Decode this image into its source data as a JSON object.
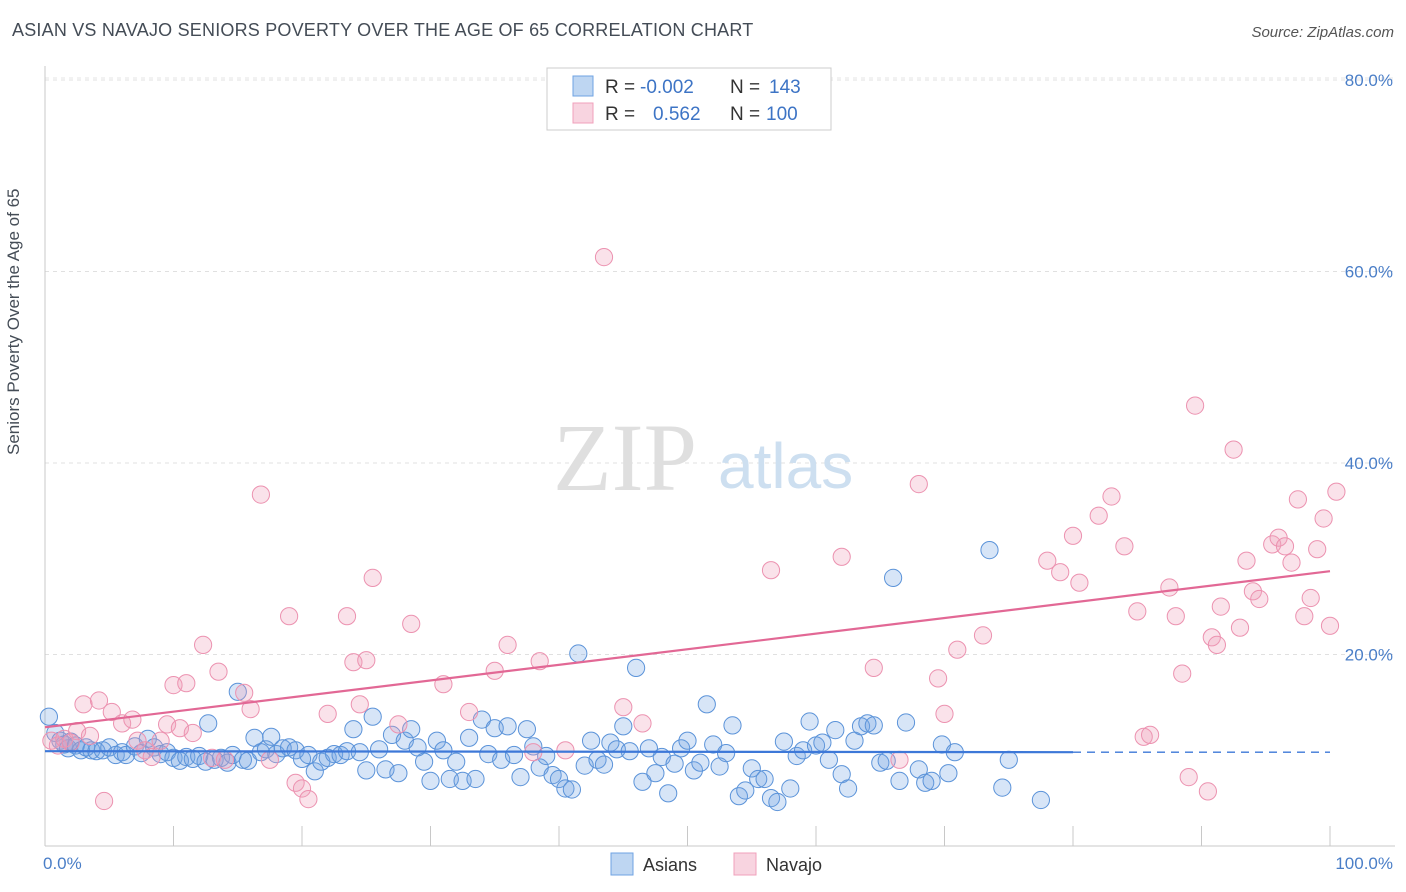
{
  "header": {
    "title": "ASIAN VS NAVAJO SENIORS POVERTY OVER THE AGE OF 65 CORRELATION CHART",
    "source": "Source: ZipAtlas.com"
  },
  "watermark": {
    "part1": "ZIP",
    "part2": "atlas"
  },
  "legend": {
    "rows": [
      {
        "r_label": "R =",
        "r_value": "-0.002",
        "n_label": "N =",
        "n_value": "143",
        "color": "#6fa3e3"
      },
      {
        "r_label": "R =",
        "r_value": "0.562",
        "n_label": "N =",
        "n_value": "100",
        "color": "#f0a0bb"
      }
    ]
  },
  "bottom_legend": [
    {
      "label": "Asians",
      "color": "#6fa3e3"
    },
    {
      "label": "Navajo",
      "color": "#f0a0bb"
    }
  ],
  "chart_data": {
    "type": "scatter",
    "title": "ASIAN VS NAVAJO SENIORS POVERTY OVER THE AGE OF 65 CORRELATION CHART",
    "xlabel": "",
    "ylabel": "Seniors Poverty Over the Age of 65",
    "xlim": [
      0,
      100
    ],
    "ylim": [
      0,
      80
    ],
    "x_tick_labels": [
      "0.0%",
      "100.0%"
    ],
    "y_ticks": [
      20,
      40,
      60,
      80
    ],
    "y_tick_labels": [
      "20.0%",
      "40.0%",
      "60.0%",
      "80.0%"
    ],
    "grid": true,
    "legend_position": "top-center",
    "series": [
      {
        "name": "Asians",
        "color": "#6fa3e3",
        "trend": {
          "x": [
            0,
            80
          ],
          "y": [
            9.9,
            9.8
          ],
          "dashed_extension_to": 100
        },
        "points": [
          [
            0.3,
            13.5
          ],
          [
            0.8,
            11.8
          ],
          [
            1.2,
            11.0
          ],
          [
            1.5,
            10.6
          ],
          [
            1.8,
            10.2
          ],
          [
            2.0,
            10.9
          ],
          [
            2.4,
            10.5
          ],
          [
            2.8,
            10.0
          ],
          [
            3.2,
            10.3
          ],
          [
            3.6,
            10.0
          ],
          [
            4.0,
            9.9
          ],
          [
            4.5,
            10.0
          ],
          [
            5.0,
            10.3
          ],
          [
            5.5,
            9.5
          ],
          [
            6.0,
            9.8
          ],
          [
            6.3,
            9.5
          ],
          [
            7.0,
            10.4
          ],
          [
            7.5,
            9.7
          ],
          [
            8.0,
            11.2
          ],
          [
            8.5,
            10.3
          ],
          [
            9.0,
            9.6
          ],
          [
            9.5,
            9.8
          ],
          [
            10.0,
            9.2
          ],
          [
            10.5,
            8.9
          ],
          [
            11.0,
            9.3
          ],
          [
            11.5,
            9.1
          ],
          [
            12.0,
            9.4
          ],
          [
            12.5,
            8.8
          ],
          [
            12.7,
            12.8
          ],
          [
            13.2,
            9.0
          ],
          [
            13.7,
            9.2
          ],
          [
            14.2,
            8.7
          ],
          [
            14.6,
            9.5
          ],
          [
            15.0,
            16.1
          ],
          [
            15.4,
            9.0
          ],
          [
            15.8,
            8.9
          ],
          [
            16.3,
            11.3
          ],
          [
            16.8,
            9.8
          ],
          [
            17.2,
            10.1
          ],
          [
            17.6,
            11.4
          ],
          [
            18.0,
            9.6
          ],
          [
            18.5,
            10.2
          ],
          [
            19.0,
            10.3
          ],
          [
            19.5,
            10.0
          ],
          [
            20.0,
            9.1
          ],
          [
            20.5,
            9.5
          ],
          [
            21.0,
            7.8
          ],
          [
            21.5,
            8.8
          ],
          [
            22.0,
            9.2
          ],
          [
            22.5,
            9.6
          ],
          [
            23.0,
            9.5
          ],
          [
            23.5,
            9.9
          ],
          [
            24.0,
            12.2
          ],
          [
            24.5,
            9.8
          ],
          [
            25.0,
            7.9
          ],
          [
            25.5,
            13.5
          ],
          [
            26.0,
            10.1
          ],
          [
            26.5,
            8.0
          ],
          [
            27.0,
            11.6
          ],
          [
            27.5,
            7.6
          ],
          [
            28.0,
            11.0
          ],
          [
            28.5,
            12.2
          ],
          [
            29.0,
            10.3
          ],
          [
            29.5,
            8.8
          ],
          [
            30.0,
            6.8
          ],
          [
            30.5,
            11.0
          ],
          [
            31.0,
            10.0
          ],
          [
            31.5,
            7.0
          ],
          [
            32.0,
            8.8
          ],
          [
            32.5,
            6.8
          ],
          [
            33.0,
            11.3
          ],
          [
            33.5,
            7.0
          ],
          [
            34.0,
            13.2
          ],
          [
            34.5,
            9.6
          ],
          [
            35.0,
            12.3
          ],
          [
            35.5,
            9.0
          ],
          [
            36.0,
            12.5
          ],
          [
            36.5,
            9.5
          ],
          [
            37.0,
            7.2
          ],
          [
            37.5,
            12.2
          ],
          [
            38.0,
            10.4
          ],
          [
            38.5,
            8.2
          ],
          [
            39.0,
            9.4
          ],
          [
            39.5,
            7.4
          ],
          [
            40.0,
            7.0
          ],
          [
            40.5,
            6.0
          ],
          [
            41.0,
            5.9
          ],
          [
            41.5,
            20.1
          ],
          [
            42.0,
            8.4
          ],
          [
            42.5,
            11.0
          ],
          [
            43.0,
            9.0
          ],
          [
            43.5,
            8.5
          ],
          [
            44.0,
            10.8
          ],
          [
            44.5,
            10.1
          ],
          [
            45.0,
            12.5
          ],
          [
            45.5,
            9.9
          ],
          [
            46.0,
            18.6
          ],
          [
            46.5,
            6.7
          ],
          [
            47.0,
            10.2
          ],
          [
            47.5,
            7.6
          ],
          [
            48.0,
            9.3
          ],
          [
            48.5,
            5.5
          ],
          [
            49.0,
            8.6
          ],
          [
            49.5,
            10.2
          ],
          [
            50.0,
            11.0
          ],
          [
            50.5,
            7.9
          ],
          [
            51.0,
            8.7
          ],
          [
            51.5,
            14.8
          ],
          [
            52.0,
            10.6
          ],
          [
            52.5,
            8.3
          ],
          [
            53.0,
            9.7
          ],
          [
            53.5,
            12.6
          ],
          [
            54.0,
            5.2
          ],
          [
            54.5,
            5.8
          ],
          [
            55.0,
            8.1
          ],
          [
            55.5,
            7.0
          ],
          [
            56.0,
            7.0
          ],
          [
            56.5,
            5.0
          ],
          [
            57.0,
            4.6
          ],
          [
            57.5,
            10.9
          ],
          [
            58.0,
            6.0
          ],
          [
            58.5,
            9.4
          ],
          [
            59.0,
            10.0
          ],
          [
            59.5,
            13.0
          ],
          [
            60.0,
            10.5
          ],
          [
            60.5,
            10.8
          ],
          [
            61.0,
            9.0
          ],
          [
            61.5,
            12.1
          ],
          [
            62.0,
            7.5
          ],
          [
            62.5,
            6.0
          ],
          [
            63.0,
            11.0
          ],
          [
            63.5,
            12.5
          ],
          [
            64.0,
            12.8
          ],
          [
            64.5,
            12.6
          ],
          [
            65.0,
            8.7
          ],
          [
            65.5,
            8.9
          ],
          [
            66.0,
            28.0
          ],
          [
            66.5,
            6.8
          ],
          [
            67.0,
            12.9
          ],
          [
            68.0,
            8.0
          ],
          [
            68.5,
            6.6
          ],
          [
            69.0,
            6.8
          ],
          [
            69.8,
            10.6
          ],
          [
            70.3,
            7.6
          ],
          [
            70.8,
            9.8
          ],
          [
            73.5,
            30.9
          ],
          [
            74.5,
            6.1
          ],
          [
            77.5,
            4.8
          ],
          [
            75.0,
            9.0
          ]
        ]
      },
      {
        "name": "Navajo",
        "color": "#f0a0bb",
        "trend": {
          "x": [
            0,
            100
          ],
          "y": [
            12.4,
            28.7
          ]
        },
        "points": [
          [
            0.5,
            11.0
          ],
          [
            1.0,
            10.5
          ],
          [
            1.5,
            11.2
          ],
          [
            2.0,
            10.8
          ],
          [
            2.5,
            12.0
          ],
          [
            3.0,
            14.8
          ],
          [
            3.5,
            11.5
          ],
          [
            4.2,
            15.2
          ],
          [
            4.6,
            4.7
          ],
          [
            5.2,
            14.0
          ],
          [
            6.0,
            12.8
          ],
          [
            6.8,
            13.2
          ],
          [
            7.2,
            11.0
          ],
          [
            7.8,
            10.0
          ],
          [
            8.3,
            9.3
          ],
          [
            9.0,
            11.0
          ],
          [
            9.5,
            12.7
          ],
          [
            10.0,
            16.8
          ],
          [
            10.5,
            12.3
          ],
          [
            11.0,
            17.0
          ],
          [
            11.5,
            11.8
          ],
          [
            12.3,
            21.0
          ],
          [
            13.0,
            9.2
          ],
          [
            13.5,
            18.2
          ],
          [
            14.0,
            9.0
          ],
          [
            15.5,
            16.0
          ],
          [
            16.0,
            14.3
          ],
          [
            16.8,
            36.7
          ],
          [
            17.5,
            9.0
          ],
          [
            19.0,
            24.0
          ],
          [
            19.5,
            6.6
          ],
          [
            20.0,
            6.0
          ],
          [
            20.5,
            4.9
          ],
          [
            22.0,
            13.8
          ],
          [
            23.5,
            24.0
          ],
          [
            24.0,
            19.2
          ],
          [
            24.5,
            14.8
          ],
          [
            25.0,
            19.4
          ],
          [
            25.5,
            28.0
          ],
          [
            27.5,
            12.7
          ],
          [
            28.5,
            23.2
          ],
          [
            31.0,
            16.9
          ],
          [
            33.0,
            14.0
          ],
          [
            35.0,
            18.3
          ],
          [
            36.0,
            21.0
          ],
          [
            38.0,
            9.8
          ],
          [
            38.5,
            19.3
          ],
          [
            40.5,
            10.0
          ],
          [
            43.5,
            61.5
          ],
          [
            45.0,
            14.5
          ],
          [
            46.5,
            12.8
          ],
          [
            56.5,
            28.8
          ],
          [
            62.0,
            30.2
          ],
          [
            64.5,
            18.6
          ],
          [
            66.5,
            9.0
          ],
          [
            68.0,
            37.8
          ],
          [
            69.5,
            17.5
          ],
          [
            70.0,
            13.8
          ],
          [
            71.0,
            20.5
          ],
          [
            73.0,
            22.0
          ],
          [
            78.0,
            29.8
          ],
          [
            79.0,
            28.6
          ],
          [
            80.0,
            32.4
          ],
          [
            80.5,
            27.5
          ],
          [
            82.0,
            34.5
          ],
          [
            83.0,
            36.5
          ],
          [
            84.0,
            31.3
          ],
          [
            85.0,
            24.5
          ],
          [
            85.5,
            11.4
          ],
          [
            86.0,
            11.6
          ],
          [
            87.5,
            27.0
          ],
          [
            88.0,
            24.0
          ],
          [
            88.5,
            18.0
          ],
          [
            89.0,
            7.2
          ],
          [
            89.5,
            46.0
          ],
          [
            90.5,
            5.7
          ],
          [
            90.8,
            21.8
          ],
          [
            91.2,
            21.0
          ],
          [
            91.5,
            25.0
          ],
          [
            92.5,
            41.4
          ],
          [
            93.0,
            22.8
          ],
          [
            93.5,
            29.8
          ],
          [
            94.0,
            26.6
          ],
          [
            94.5,
            25.8
          ],
          [
            95.5,
            31.5
          ],
          [
            96.0,
            32.2
          ],
          [
            96.5,
            31.3
          ],
          [
            97.0,
            29.6
          ],
          [
            97.5,
            36.2
          ],
          [
            98.0,
            24.0
          ],
          [
            98.5,
            25.9
          ],
          [
            99.0,
            31.0
          ],
          [
            99.5,
            34.2
          ],
          [
            100.0,
            23.0
          ],
          [
            100.5,
            37.0
          ]
        ]
      }
    ]
  }
}
